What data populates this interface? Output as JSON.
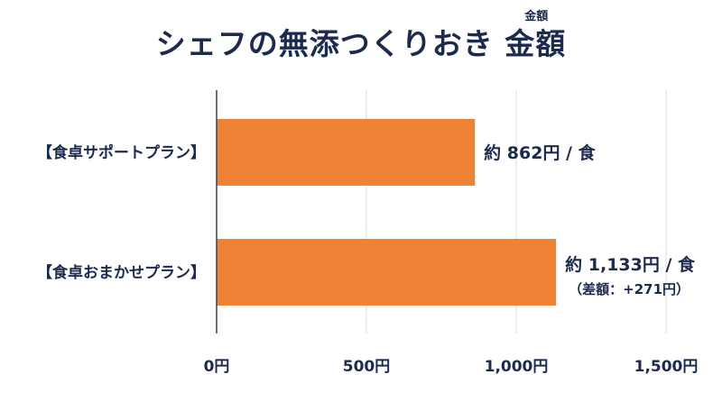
{
  "title": {
    "main": "シェフの無添つくりおき 金額",
    "ruby": "金額"
  },
  "chart_data": {
    "type": "bar",
    "orientation": "horizontal",
    "categories": [
      "【食卓サポートプラン】",
      "【食卓おまかせプラン】"
    ],
    "values": [
      862,
      1133
    ],
    "data_labels": [
      "約 862円 / 食",
      "約 1,133円 / 食"
    ],
    "data_sublabels": [
      "",
      "（差額：+271円）"
    ],
    "xlim": [
      0,
      1500
    ],
    "xticks": [
      0,
      500,
      1000,
      1500
    ],
    "xtick_labels": [
      "0円",
      "500円",
      "1,000円",
      "1,500円"
    ],
    "grid": true,
    "bar_color": "#ef8235",
    "axis_color": "#444444",
    "grid_color": "#dddddd",
    "text_color": "#1c2a4d"
  }
}
